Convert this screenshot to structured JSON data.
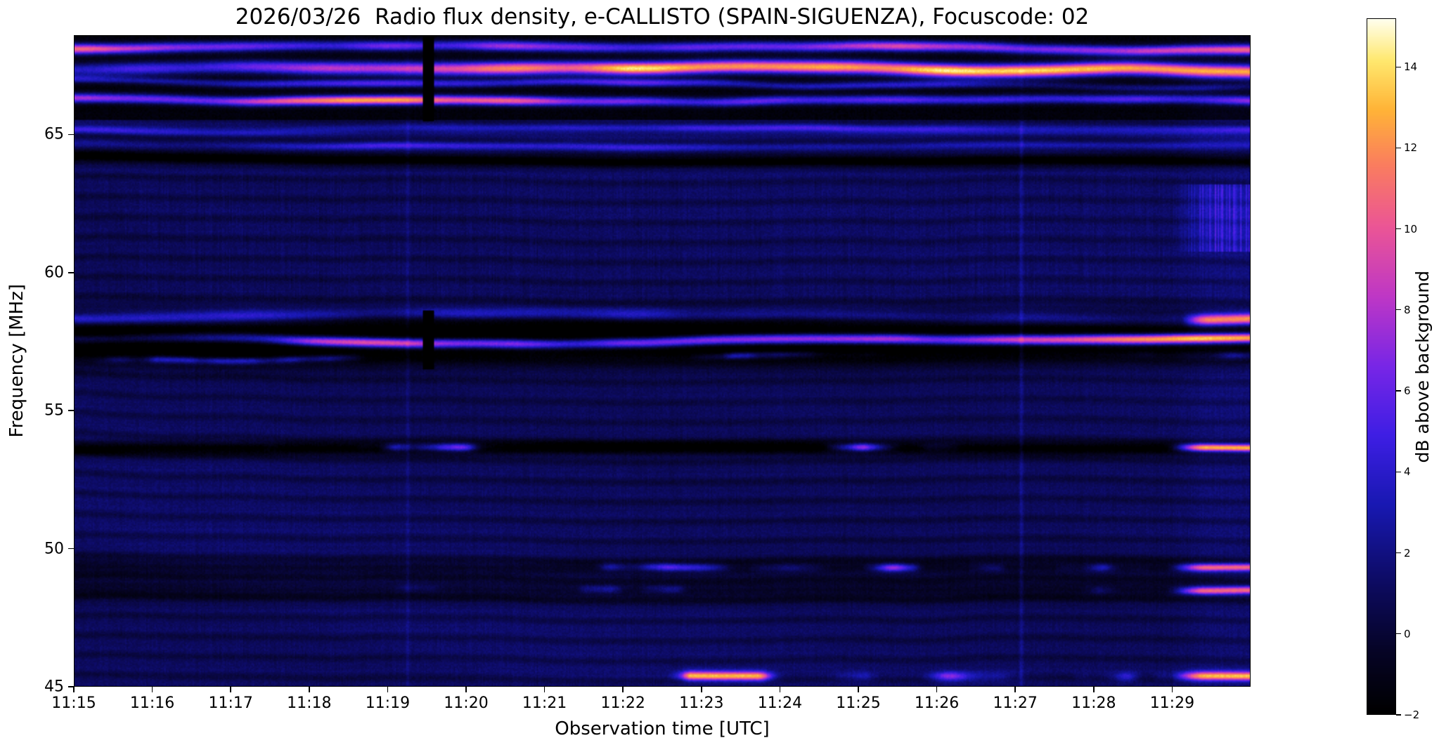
{
  "chart_data": {
    "type": "heatmap",
    "title": "2026/03/26  Radio flux density, e-CALLISTO (SPAIN-SIGUENZA), Focuscode: 02",
    "xlabel": "Observation time [UTC]",
    "ylabel": "Frequency [MHz]",
    "x_ticks": [
      "11:15",
      "11:16",
      "11:17",
      "11:18",
      "11:19",
      "11:20",
      "11:21",
      "11:22",
      "11:23",
      "11:24",
      "11:25",
      "11:26",
      "11:27",
      "11:28",
      "11:29"
    ],
    "x_range_utc": [
      "11:15",
      "11:30"
    ],
    "y_ticks": [
      65,
      60,
      55,
      50,
      45
    ],
    "y_range_mhz": [
      45,
      68.6
    ],
    "grid": false,
    "legend": "colorbar-right",
    "colorbar": {
      "label": "dB above background",
      "tick_values": [
        14,
        12,
        10,
        8,
        6,
        4,
        2,
        0,
        -2
      ],
      "tick_labels": [
        "14",
        "12",
        "10",
        "8",
        "6",
        "4",
        "2",
        "0",
        "−2"
      ],
      "vmin": -2,
      "vmax": 15.2,
      "colormap": "black → blue → violet → magenta → orange → yellow → white"
    },
    "background_level_db": 1,
    "rfi_bands": [
      {
        "freq": 68.15,
        "peak_db": 12,
        "width": 0.13,
        "wobble": 0.22,
        "type": "bright"
      },
      {
        "freq": 67.35,
        "peak_db": 14,
        "width": 0.17,
        "wobble": 0.28,
        "type": "bright"
      },
      {
        "freq": 66.85,
        "peak_db": 7,
        "width": 0.1,
        "wobble": 0.24,
        "type": "bright"
      },
      {
        "freq": 66.25,
        "peak_db": 11,
        "width": 0.12,
        "wobble": 0.24,
        "type": "bright"
      },
      {
        "freq": 65.15,
        "peak_db": 4,
        "width": 0.1,
        "wobble": 0.2,
        "type": "bright"
      },
      {
        "freq": 64.7,
        "peak_db": 3.5,
        "width": 0.1,
        "wobble": 0.2,
        "type": "bright"
      },
      {
        "freq": 64.15,
        "peak_db": -3,
        "width": 0.2,
        "wobble": 0.15,
        "type": "dark"
      },
      {
        "freq": 58.45,
        "peak_db": 5,
        "width": 0.15,
        "wobble": 0.25,
        "type": "bright",
        "edge": true
      },
      {
        "freq": 57.6,
        "peak_db": -4.5,
        "width": 0.6,
        "wobble": 0.2,
        "type": "dark"
      },
      {
        "freq": 57.55,
        "peak_db": 14,
        "width": 0.13,
        "wobble": 0.28,
        "type": "bright"
      },
      {
        "freq": 56.95,
        "peak_db": 5,
        "width": 0.09,
        "wobble": 0.25,
        "type": "dotty"
      },
      {
        "freq": 53.62,
        "peak_db": -3.5,
        "width": 0.18,
        "wobble": 0.05,
        "type": "dark"
      },
      {
        "freq": 53.62,
        "peak_db": 15,
        "width": 0.1,
        "wobble": 0.06,
        "type": "dotty",
        "edge": true
      },
      {
        "freq": 49.3,
        "peak_db": -1.6,
        "width": 0.25,
        "wobble": 0.1,
        "type": "dark"
      },
      {
        "freq": 49.25,
        "peak_db": 11,
        "width": 0.1,
        "wobble": 0.1,
        "type": "dotty",
        "edge": true
      },
      {
        "freq": 48.45,
        "peak_db": -1.6,
        "width": 0.3,
        "wobble": 0.1,
        "type": "dark"
      },
      {
        "freq": 48.5,
        "peak_db": 11,
        "width": 0.1,
        "wobble": 0.1,
        "type": "dotty",
        "edge": true
      },
      {
        "freq": 45.35,
        "peak_db": 12,
        "width": 0.12,
        "wobble": 0.08,
        "type": "dotty",
        "edge": true
      }
    ],
    "features": {
      "dark_background_above_mhz": 65.6,
      "data_gap_utc": "~11:19.6 black vertical column in the 66-68.5 MHz and 56.5-58.6 MHz bands",
      "faint_vertical_lines_utc": [
        "11:19.3",
        "11:27.1"
      ],
      "right_edge_brightening_after_utc": "11:29.0"
    }
  }
}
